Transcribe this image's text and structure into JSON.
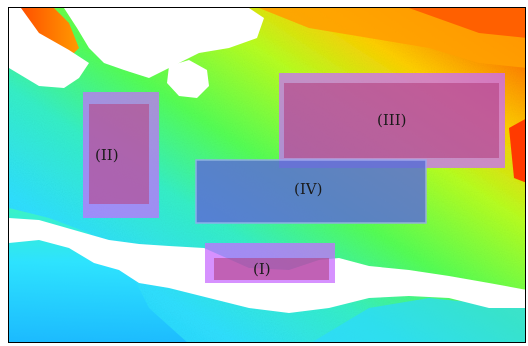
{
  "map": {
    "regions": [
      {
        "id": "I",
        "label": "(I)"
      },
      {
        "id": "II",
        "label": "(II)"
      },
      {
        "id": "III",
        "label": "(III)"
      },
      {
        "id": "IV",
        "label": "(IV)"
      }
    ],
    "colors": {
      "land": "#ffffff",
      "frame": "#000000",
      "region_highlight": "#c86cff",
      "region_iv_overlay": "#5b6fd6",
      "sea_gradient": [
        "#1ec8ff",
        "#2fe0ff",
        "#35f0c8",
        "#55ff55",
        "#b8ff20",
        "#ffd000",
        "#ff8a00",
        "#ff3000"
      ]
    }
  }
}
